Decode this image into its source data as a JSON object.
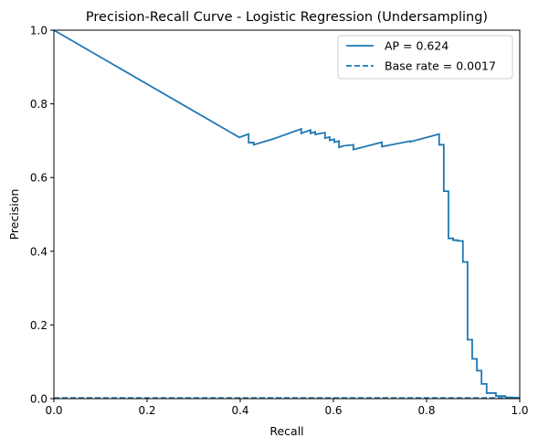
{
  "chart_data": {
    "type": "line",
    "title": "Precision-Recall Curve - Logistic Regression (Undersampling)",
    "xlabel": "Recall",
    "ylabel": "Precision",
    "xlim": [
      0.0,
      1.0
    ],
    "ylim": [
      0.0,
      1.0
    ],
    "xticks": [
      "0.0",
      "0.2",
      "0.4",
      "0.6",
      "0.8",
      "1.0"
    ],
    "yticks": [
      "0.0",
      "0.2",
      "0.4",
      "0.6",
      "0.8",
      "1.0"
    ],
    "grid": false,
    "legend_position": "top-right",
    "color": "#1f77b4",
    "series": [
      {
        "name": "AP = 0.624",
        "style": "solid",
        "x": [
          0.0,
          0.398,
          0.398,
          0.418,
          0.418,
          0.429,
          0.429,
          0.469,
          0.531,
          0.531,
          0.551,
          0.551,
          0.561,
          0.561,
          0.582,
          0.582,
          0.592,
          0.592,
          0.602,
          0.602,
          0.612,
          0.612,
          0.622,
          0.622,
          0.643,
          0.643,
          0.704,
          0.704,
          0.765,
          0.765,
          0.827,
          0.827,
          0.837,
          0.837,
          0.847,
          0.847,
          0.857,
          0.857,
          0.867,
          0.867,
          0.878,
          0.878,
          0.888,
          0.888,
          0.898,
          0.898,
          0.908,
          0.908,
          0.918,
          0.918,
          0.929,
          0.929,
          0.949,
          0.949,
          0.969,
          0.969,
          1.0
        ],
        "y": [
          1.0,
          0.709,
          0.709,
          0.718,
          0.695,
          0.695,
          0.689,
          0.704,
          0.732,
          0.72,
          0.729,
          0.72,
          0.724,
          0.717,
          0.722,
          0.707,
          0.71,
          0.701,
          0.704,
          0.696,
          0.699,
          0.682,
          0.686,
          0.686,
          0.689,
          0.676,
          0.696,
          0.684,
          0.699,
          0.697,
          0.718,
          0.689,
          0.689,
          0.563,
          0.563,
          0.435,
          0.435,
          0.43,
          0.43,
          0.428,
          0.428,
          0.371,
          0.371,
          0.16,
          0.16,
          0.108,
          0.108,
          0.076,
          0.076,
          0.04,
          0.04,
          0.015,
          0.015,
          0.007,
          0.007,
          0.004,
          0.002
        ]
      },
      {
        "name": "Base rate = 0.0017",
        "style": "dashed",
        "x": [
          0.0,
          1.0
        ],
        "y": [
          0.0017,
          0.0017
        ]
      }
    ]
  }
}
